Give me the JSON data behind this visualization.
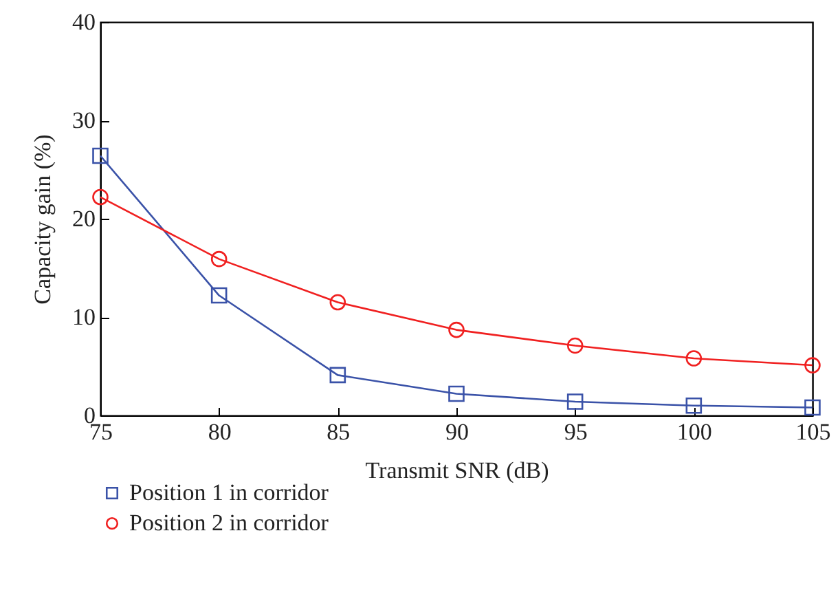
{
  "chart_data": {
    "type": "line",
    "xlabel": "Transmit SNR (dB)",
    "ylabel": "Capacity gain (%)",
    "x": [
      75,
      80,
      85,
      90,
      95,
      100,
      105
    ],
    "series": [
      {
        "name": "Position 1 in corridor",
        "color": "#3a52a8",
        "marker": "square",
        "values": [
          26.4,
          12.2,
          4.1,
          2.2,
          1.4,
          1.0,
          0.8
        ]
      },
      {
        "name": "Position 2 in corridor",
        "color": "#f02020",
        "marker": "circle",
        "values": [
          22.2,
          15.9,
          11.5,
          8.7,
          7.1,
          5.8,
          5.1
        ]
      }
    ],
    "xlim": [
      75,
      105
    ],
    "xticks": [
      75,
      80,
      85,
      90,
      95,
      100,
      105
    ],
    "ylim": [
      0,
      40
    ],
    "yticks": [
      0,
      10,
      20,
      30,
      40
    ],
    "grid": false,
    "legend": "bottom left",
    "line_style": "solid"
  }
}
